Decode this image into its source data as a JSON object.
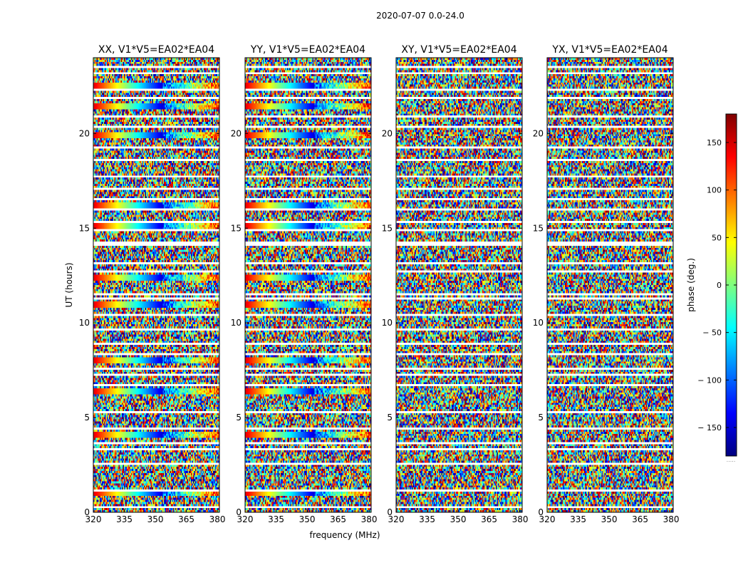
{
  "chart_data": {
    "type": "heatmap",
    "suptitle": "2020-07-07 0.0-24.0",
    "xlabel": "frequency (MHz)",
    "ylabel": "UT (hours)",
    "xlim": [
      320,
      381
    ],
    "ylim": [
      0,
      24
    ],
    "x_ticks": [
      320,
      335,
      350,
      365,
      380
    ],
    "x_tick_labels": [
      "320",
      "335",
      "350",
      "365",
      "380"
    ],
    "y_ticks": [
      0,
      5,
      10,
      15,
      20
    ],
    "y_tick_labels": [
      "0",
      "5",
      "10",
      "15",
      "20"
    ],
    "colorbar": {
      "label": "phase (deg.)",
      "range": [
        -180,
        180
      ],
      "ticks": [
        150,
        100,
        50,
        0,
        -50,
        -100,
        -150
      ],
      "tick_labels": [
        "150",
        "100",
        "50",
        "0",
        "− 50",
        "− 100",
        "− 150"
      ],
      "colormap": "jet",
      "colors": [
        "#00007f",
        "#0000ff",
        "#007fff",
        "#00ffff",
        "#7fff7f",
        "#ffff00",
        "#ff7f00",
        "#ff0000",
        "#7f0000"
      ],
      "footer": "....."
    },
    "panels": [
      {
        "title": "XX, V1*V5=EA02*EA04",
        "coherent_bands_ut": [
          1.1,
          4.2,
          6.4,
          8.1,
          11.0,
          12.4,
          15.2,
          16.3,
          20.0,
          21.5,
          22.6
        ]
      },
      {
        "title": "YY, V1*V5=EA02*EA04",
        "coherent_bands_ut": [
          1.1,
          4.2,
          6.4,
          8.1,
          11.0,
          12.4,
          15.2,
          16.3,
          20.0,
          21.5,
          22.6
        ]
      },
      {
        "title": "XY, V1*V5=EA02*EA04",
        "coherent_bands_ut": []
      },
      {
        "title": "YX, V1*V5=EA02*EA04",
        "coherent_bands_ut": []
      }
    ],
    "flagged_gaps_ut": [
      0.35,
      1.2,
      2.6,
      3.4,
      3.7,
      4.5,
      5.4,
      6.8,
      7.3,
      7.6,
      8.4,
      8.9,
      9.7,
      10.5,
      11.3,
      11.6,
      12.8,
      13.2,
      14.2,
      14.3,
      15.0,
      15.4,
      16.0,
      16.6,
      17.1,
      17.8,
      18.7,
      19.3,
      20.4,
      21.0,
      21.9,
      22.4,
      23.2,
      23.6
    ]
  }
}
